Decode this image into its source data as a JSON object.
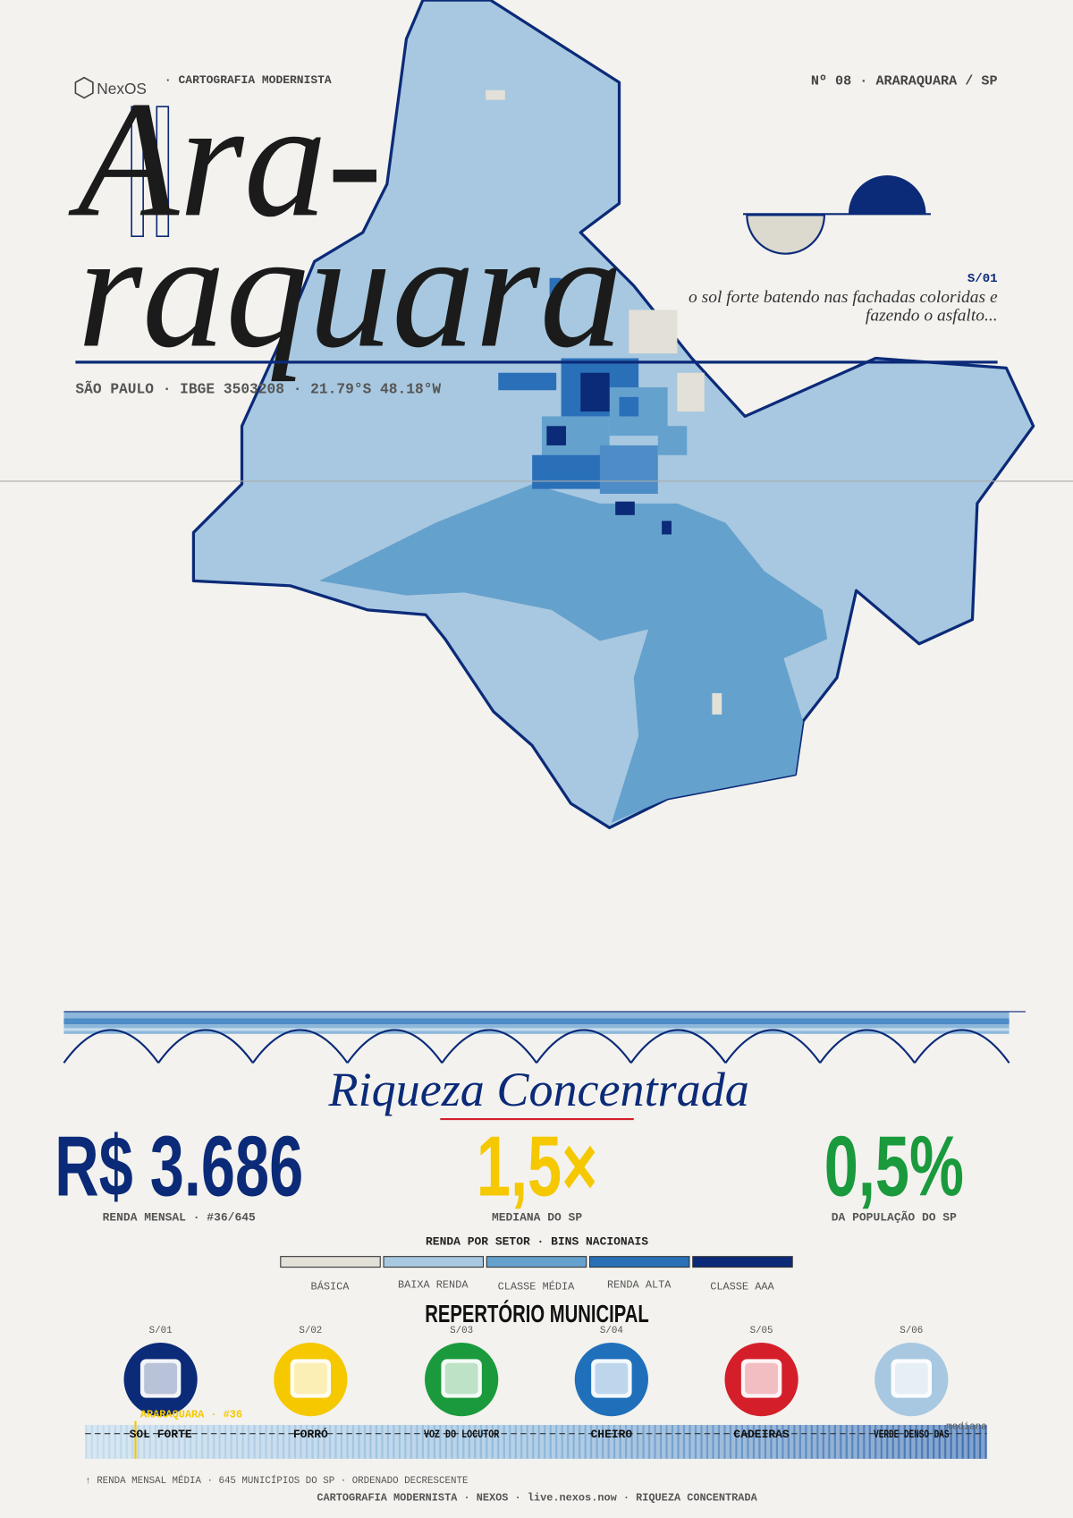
{
  "header": {
    "brand": "NexOS",
    "series": "· CARTOGRAFIA MODERNISTA",
    "issue": "Nº 08 · ARARAQUARA / SP"
  },
  "title": {
    "line1": "Ara-",
    "line2": "raquara"
  },
  "location": "SÃO PAULO · IBGE 3503208 · 21.79°S 48.18°W",
  "quote": {
    "code": "S/01",
    "line1": "o sol forte batendo nas fachadas coloridas e",
    "line2": "fazendo o asfalto..."
  },
  "section_title": "Riqueza Concentrada",
  "stats": [
    {
      "value": "R$ 3.686",
      "label": "RENDA MENSAL · #36/645",
      "color": "#0b2a78"
    },
    {
      "value": "1,5×",
      "label": "MEDIANA DO SP",
      "color": "#f5c800"
    },
    {
      "value": "0,5%",
      "label": "DA POPULAÇÃO DO SP",
      "color": "#1a9a3c"
    }
  ],
  "legend": {
    "title": "RENDA POR SETOR · BINS NACIONAIS",
    "bins": [
      {
        "label": "BÁSICA",
        "color": "#e3e0d8"
      },
      {
        "label": "BAIXA RENDA",
        "color": "#a7c8e0"
      },
      {
        "label": "CLASSE MÉDIA",
        "color": "#65a1cd"
      },
      {
        "label": "RENDA ALTA",
        "color": "#2a70b8"
      },
      {
        "label": "CLASSE AAA",
        "color": "#0b2a78"
      }
    ]
  },
  "repertoire": {
    "title": "REPERTÓRIO MUNICIPAL",
    "items": [
      {
        "code": "S/01",
        "label": "SOL FORTE",
        "color": "#0b2a78"
      },
      {
        "code": "S/02",
        "label": "FORRÓ",
        "color": "#f5c800"
      },
      {
        "code": "S/03",
        "label": "VOZ DO LOCUTOR",
        "color": "#1a9a3c"
      },
      {
        "code": "S/04",
        "label": "CHEIRO",
        "color": "#1f6fba"
      },
      {
        "code": "S/05",
        "label": "CADEIRAS",
        "color": "#d41f2a"
      },
      {
        "code": "S/06",
        "label": "VERDE DENSO DAS",
        "color": "#a7c8e0"
      }
    ]
  },
  "ranking": {
    "marker": "ARARAQUARA · #36",
    "median": "mediana",
    "caption": "↑ RENDA MENSAL MÉDIA · 645 MUNICÍPIOS DO SP · ORDENADO DECRESCENTE"
  },
  "footer": "CARTOGRAFIA MODERNISTA · NEXOS · live.nexos.now · RIQUEZA CONCENTRADA"
}
